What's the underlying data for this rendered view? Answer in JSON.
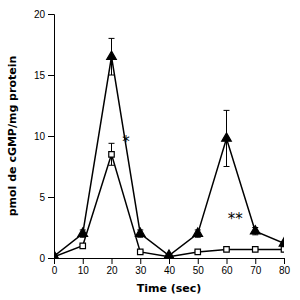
{
  "chart_data": {
    "type": "line",
    "x": [
      0,
      10,
      20,
      30,
      40,
      50,
      60,
      70,
      80
    ],
    "series": [
      {
        "color": "#000000",
        "marker": "triangle-up",
        "line_style": "solid",
        "values": [
          0.15,
          2.0,
          16.5,
          2.0,
          0.2,
          2.0,
          9.8,
          2.2,
          1.2
        ],
        "errors": [
          0.05,
          0.3,
          1.5,
          0.3,
          0.05,
          0.3,
          2.3,
          0.3,
          0.15
        ]
      },
      {
        "color": "#000000",
        "marker": "square-open",
        "line_style": "solid",
        "values": [
          0.1,
          1.0,
          8.5,
          0.5,
          0.1,
          0.5,
          0.7,
          0.7,
          0.7
        ],
        "errors": [
          0.05,
          0.1,
          0.9,
          0.1,
          0.05,
          0.1,
          0.1,
          0.1,
          0.1
        ]
      }
    ],
    "xlabel": "Time (sec)",
    "ylabel": "pmol de cGMP/mg protein",
    "xlim": [
      0,
      80
    ],
    "ylim": [
      0,
      20
    ],
    "xticks": [
      0,
      10,
      20,
      30,
      40,
      50,
      60,
      70,
      80
    ],
    "yticks": [
      0,
      5,
      10,
      15,
      20
    ],
    "annotations": [
      {
        "text": "*",
        "x": 25,
        "y": 9.5
      },
      {
        "text": "**",
        "x": 63,
        "y": 3.2
      }
    ]
  }
}
